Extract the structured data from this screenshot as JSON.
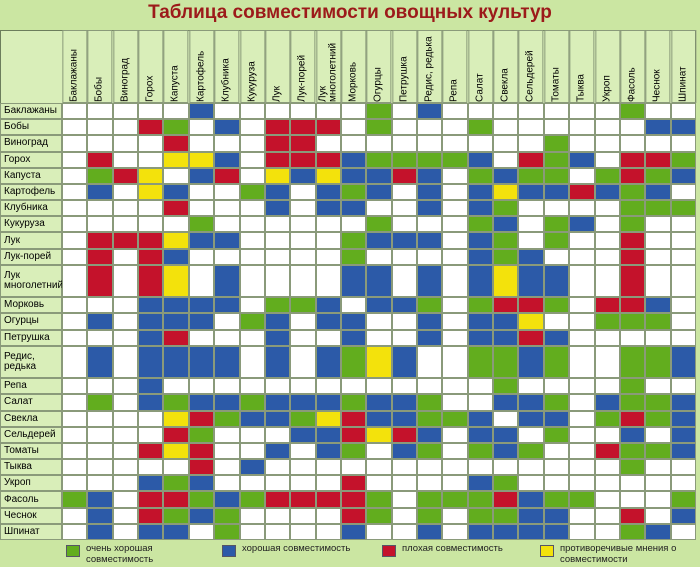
{
  "title": "Таблица совместимости овощных культур",
  "crops": [
    "Баклажаны",
    "Бобы",
    "Виноград",
    "Горох",
    "Капуста",
    "Картофель",
    "Клубника",
    "Кукуруза",
    "Лук",
    "Лук-порей",
    "Лук многолетний",
    "Морковь",
    "Огурцы",
    "Петрушка",
    "Редис, редька",
    "Репа",
    "Салат",
    "Свекла",
    "Сельдерей",
    "Томаты",
    "Тыква",
    "Укроп",
    "Фасоль",
    "Чеснок",
    "Шпинат"
  ],
  "table": {
    "rows": [
      {
        "cells": "WWWWWBWWWWWWGWBWWWWWWWGWW"
      },
      {
        "cells": "WWWRGWBWRRRWGWWWGWWWWWWBB"
      },
      {
        "cells": "WWWWRWWWRRWWWWWWWWWGWWWWW"
      },
      {
        "cells": "WRWWYYBWRRRBGGGGBWRGBWRRG"
      },
      {
        "cells": "WGRYWBRWYBYBBRBWGBGGWGRGB"
      },
      {
        "cells": "WBWYBWWGBWBGBWBWBYBBRBGBW"
      },
      {
        "cells": "WWWWRWWWBWBBWWBWBGWWWWGGG"
      },
      {
        "cells": "WWWWWGWWWWWWGWWWGBWGBWGWW"
      },
      {
        "cells": "WRRRYBBWWWWGBBBWBGWGWWRWW"
      },
      {
        "cells": "WRWRBWWWWWWGWWWWBGBWWWRWW"
      },
      {
        "cells": "WRWRYWBWWWWBBWBWBYBBWWRWW"
      },
      {
        "cells": "WWWBBBBWGGBWBBGWGRRGWRRBW"
      },
      {
        "cells": "WBWBBBWGBWBBWWBWBBYWWGGGW"
      },
      {
        "cells": "WWWBRWWWBWWBWWBWBBRBWWWWW"
      },
      {
        "cells": "WBWBBBBWBWBGYBWWGGBGWWGGB"
      },
      {
        "cells": "WWWBWWWWWWWWWWWWWGWWWWGWW"
      },
      {
        "cells": "WGWBGBBGBBBGBBGWWBBGWBGGB"
      },
      {
        "cells": "WWWWYRGBBGYRBBGGBWBBWGRGB"
      },
      {
        "cells": "WWWWRGWWWBBRYRBWBBWGWWBWB"
      },
      {
        "cells": "WWWRYRWWBWBGWBGWGBGWWRGGB"
      },
      {
        "cells": "WWWWWRWBWWWWWWWWWWWWWWGWW"
      },
      {
        "cells": "WWWBGBWWWWWRWWWWBGWWWWWWW"
      },
      {
        "cells": "GBWRRGBGRRRRGWGGGRBGGWWWG"
      },
      {
        "cells": "WBWRGBGWWWWRGWGWGGBBWWRWB"
      },
      {
        "cells": "WBWBBWGWWWWBWWBWBBBBWWGBW"
      }
    ]
  },
  "legend": [
    {
      "code": "G",
      "color": "#62ad1e",
      "label": "очень хорошая совместимость"
    },
    {
      "code": "B",
      "color": "#2c5aa8",
      "label": "хорошая совместимость"
    },
    {
      "code": "R",
      "color": "#c4122b",
      "label": "плохая совместимость"
    },
    {
      "code": "Y",
      "color": "#f3e20c",
      "label": "противоречивые мнения о совместимости"
    }
  ]
}
